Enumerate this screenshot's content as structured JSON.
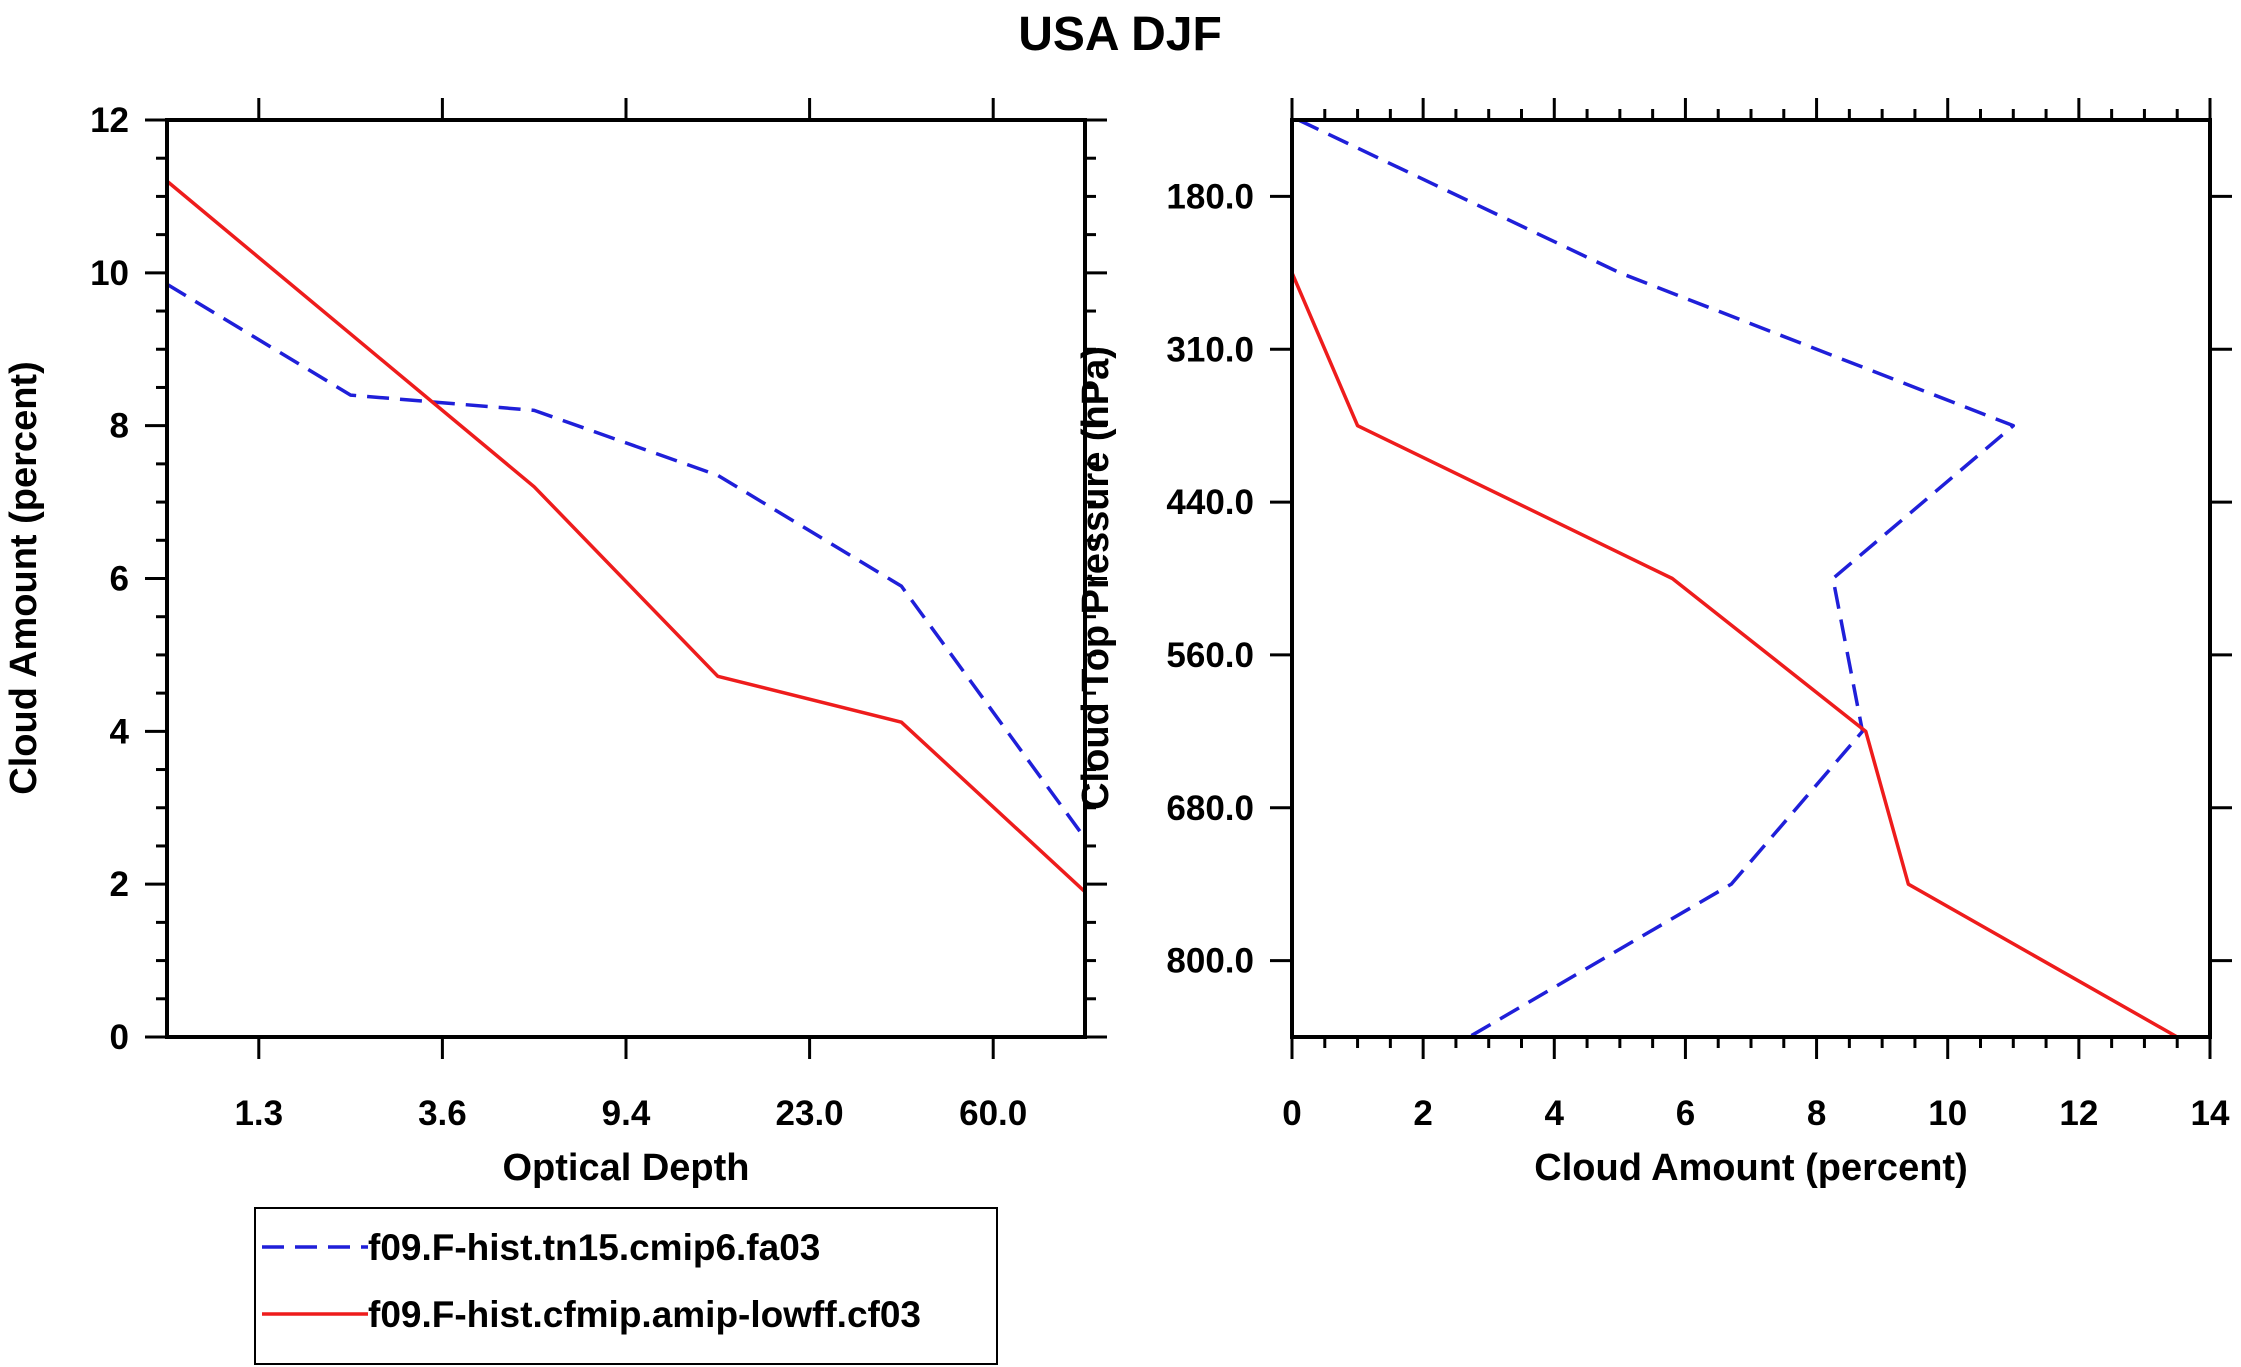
{
  "title": "USA DJF",
  "colors": {
    "model1": "#1f1fd9",
    "model2": "#ee1c1c",
    "axis": "#000000"
  },
  "legend": {
    "items": [
      {
        "label": "f09.F-hist.tn15.cmip6.fa03",
        "style": "dashed",
        "color": "#1f1fd9"
      },
      {
        "label": "f09.F-hist.cfmip.amip-lowff.cf03",
        "style": "solid",
        "color": "#ee1c1c"
      }
    ]
  },
  "chart_data": [
    {
      "type": "line",
      "name": "optical-depth-panel",
      "xlabel": "Optical Depth",
      "ylabel": "Cloud Amount (percent)",
      "xlim": [
        0,
        5
      ],
      "ylim": [
        0,
        12
      ],
      "xticks": [
        {
          "pos": 0.5,
          "label": "1.3"
        },
        {
          "pos": 1.5,
          "label": "3.6"
        },
        {
          "pos": 2.5,
          "label": "9.4"
        },
        {
          "pos": 3.5,
          "label": "23.0"
        },
        {
          "pos": 4.5,
          "label": "60.0"
        }
      ],
      "yticks": [
        0,
        2,
        4,
        6,
        8,
        10,
        12
      ],
      "yminor_step": 0.5,
      "series": [
        {
          "name": "f09.F-hist.tn15.cmip6.fa03",
          "style": "dashed",
          "x": [
            0,
            1,
            2,
            3,
            4,
            5
          ],
          "y": [
            9.85,
            8.4,
            8.2,
            7.35,
            5.9,
            2.6
          ]
        },
        {
          "name": "f09.F-hist.cfmip.amip-lowff.cf03",
          "style": "solid",
          "x": [
            0,
            1,
            2,
            3,
            4,
            5
          ],
          "y": [
            11.2,
            9.2,
            7.2,
            4.72,
            4.12,
            1.9
          ]
        }
      ]
    },
    {
      "type": "line",
      "name": "pressure-panel",
      "xlabel": "Cloud Amount (percent)",
      "ylabel": "Cloud Top Pressure (hPa)",
      "xlim": [
        0,
        14
      ],
      "ylim": [
        0,
        6
      ],
      "y_reversed": true,
      "xticks": [
        0,
        2,
        4,
        6,
        8,
        10,
        12,
        14
      ],
      "xminor_step": 0.5,
      "yticks": [
        {
          "pos": 0.5,
          "label": "180.0"
        },
        {
          "pos": 1.5,
          "label": "310.0"
        },
        {
          "pos": 2.5,
          "label": "440.0"
        },
        {
          "pos": 3.5,
          "label": "560.0"
        },
        {
          "pos": 4.5,
          "label": "680.0"
        },
        {
          "pos": 5.5,
          "label": "800.0"
        }
      ],
      "series": [
        {
          "name": "f09.F-hist.tn15.cmip6.fa03",
          "style": "dashed",
          "x": [
            0.1,
            5,
            11,
            8.25,
            8.7,
            6.7,
            2.7
          ],
          "y": [
            0,
            1,
            2,
            3,
            4,
            5,
            6
          ]
        },
        {
          "name": "f09.F-hist.cfmip.amip-lowff.cf03",
          "style": "solid",
          "x": [
            0,
            1,
            5.8,
            8.75,
            9.4,
            13.5
          ],
          "y": [
            1,
            2,
            3,
            4,
            5,
            6
          ]
        }
      ]
    }
  ]
}
